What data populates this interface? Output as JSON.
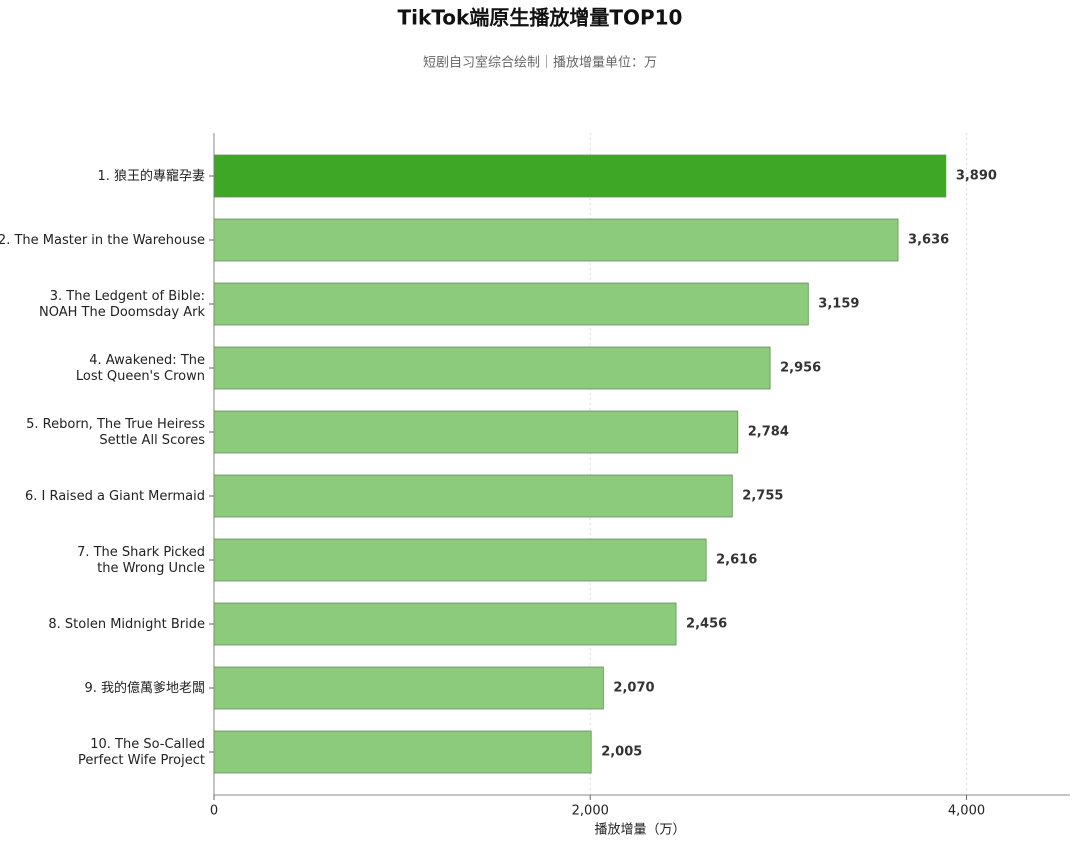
{
  "chart_data": {
    "type": "barh",
    "title": "TikTok端原生播放增量TOP10",
    "subtitle": "短剧自习室综合绘制｜播放增量单位：万",
    "x_label": "播放增量（万）",
    "categories": [
      [
        "1. 狼王的專寵孕妻"
      ],
      [
        "2. The Master in the Warehouse"
      ],
      [
        "3. The Ledgent of Bible:",
        "NOAH The Doomsday Ark"
      ],
      [
        "4. Awakened: The",
        "Lost Queen's Crown"
      ],
      [
        "5. Reborn, The True Heiress",
        "Settle All Scores"
      ],
      [
        "6. I Raised a Giant Mermaid"
      ],
      [
        "7. The Shark Picked",
        "the Wrong Uncle"
      ],
      [
        "8. Stolen Midnight Bride"
      ],
      [
        "9. 我的億萬爹地老闆"
      ],
      [
        "10. The So-Called",
        "Perfect Wife Project"
      ]
    ],
    "values": [
      3890,
      3636,
      3159,
      2956,
      2784,
      2755,
      2616,
      2456,
      2070,
      2005
    ],
    "value_labels": [
      "3,890",
      "3,636",
      "3,159",
      "2,956",
      "2,784",
      "2,755",
      "2,616",
      "2,456",
      "2,070",
      "2,005"
    ],
    "colors": [
      "#3ea726",
      "#8cca7c",
      "#8cca7c",
      "#8cca7c",
      "#8cca7c",
      "#8cca7c",
      "#8cca7c",
      "#8cca7c",
      "#8cca7c",
      "#8cca7c"
    ],
    "xlim": [
      0,
      4550
    ],
    "xticks": [
      0,
      {
        "value": 2000,
        "label": "2,000"
      },
      {
        "value": 4000,
        "label": "4,000"
      }
    ],
    "grid": true
  }
}
